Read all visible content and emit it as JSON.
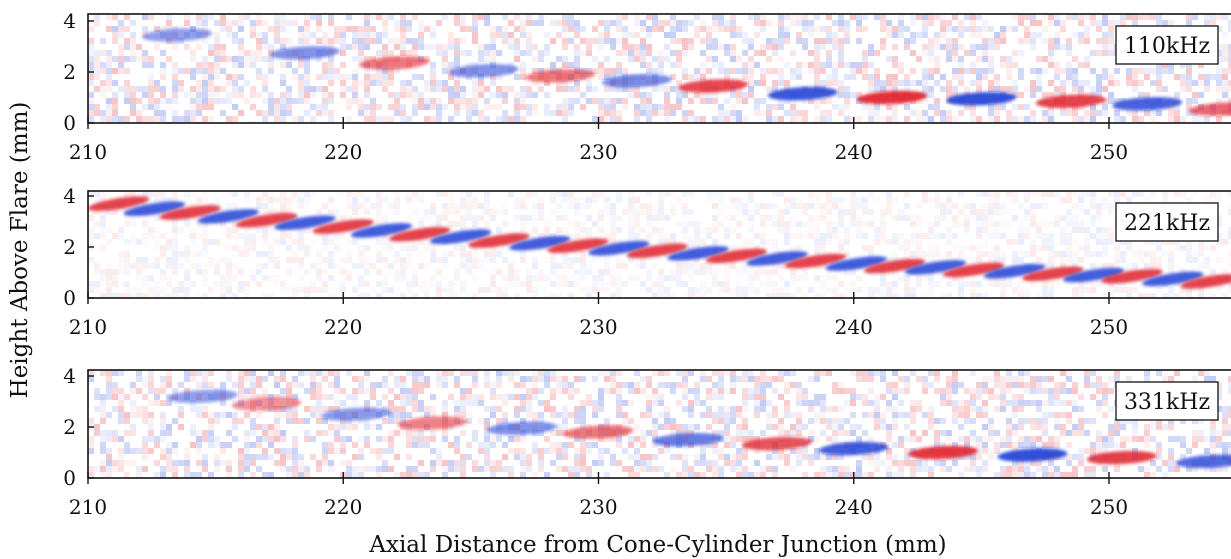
{
  "chart_data": {
    "type": "heatmap",
    "xlabel": "Axial Distance from Cone-Cylinder Junction (mm)",
    "ylabel": "Height Above Flare (mm)",
    "xlim": [
      210,
      255
    ],
    "ylim": [
      0,
      4.3
    ],
    "xticks": [
      210,
      220,
      230,
      240,
      250
    ],
    "yticks": [
      0,
      2,
      4
    ],
    "colormap": {
      "negative": "#1f3fd6",
      "zero": "#ffffff",
      "positive": "#e0202a"
    },
    "grid": false,
    "panels": [
      {
        "label": "110kHz",
        "wave_packets": [
          {
            "x": 213.5,
            "y": 3.45,
            "sign": -1,
            "amp": 0.35
          },
          {
            "x": 218.5,
            "y": 2.75,
            "sign": -1,
            "amp": 0.45
          },
          {
            "x": 222.0,
            "y": 2.35,
            "sign": 1,
            "amp": 0.5
          },
          {
            "x": 225.5,
            "y": 2.05,
            "sign": -1,
            "amp": 0.45
          },
          {
            "x": 228.5,
            "y": 1.85,
            "sign": 1,
            "amp": 0.5
          },
          {
            "x": 231.5,
            "y": 1.65,
            "sign": -1,
            "amp": 0.5
          },
          {
            "x": 234.5,
            "y": 1.45,
            "sign": 1,
            "amp": 0.8
          },
          {
            "x": 238.0,
            "y": 1.15,
            "sign": -1,
            "amp": 0.9
          },
          {
            "x": 241.5,
            "y": 1.0,
            "sign": 1,
            "amp": 0.95
          },
          {
            "x": 245.0,
            "y": 0.95,
            "sign": -1,
            "amp": 0.95
          },
          {
            "x": 248.5,
            "y": 0.85,
            "sign": 1,
            "amp": 0.85
          },
          {
            "x": 251.5,
            "y": 0.75,
            "sign": -1,
            "amp": 0.8
          },
          {
            "x": 254.5,
            "y": 0.55,
            "sign": 1,
            "amp": 0.6
          }
        ]
      },
      {
        "label": "221kHz",
        "wave_packets": [
          {
            "x": 211.2,
            "y": 3.7,
            "sign": 1,
            "amp": 0.85
          },
          {
            "x": 212.6,
            "y": 3.5,
            "sign": -1,
            "amp": 0.85
          },
          {
            "x": 214.0,
            "y": 3.35,
            "sign": 1,
            "amp": 0.85
          },
          {
            "x": 215.5,
            "y": 3.2,
            "sign": -1,
            "amp": 0.85
          },
          {
            "x": 217.0,
            "y": 3.05,
            "sign": 1,
            "amp": 0.85
          },
          {
            "x": 218.5,
            "y": 2.95,
            "sign": -1,
            "amp": 0.85
          },
          {
            "x": 220.0,
            "y": 2.8,
            "sign": 1,
            "amp": 0.85
          },
          {
            "x": 221.5,
            "y": 2.65,
            "sign": -1,
            "amp": 0.85
          },
          {
            "x": 223.0,
            "y": 2.5,
            "sign": 1,
            "amp": 0.85
          },
          {
            "x": 224.6,
            "y": 2.4,
            "sign": -1,
            "amp": 0.85
          },
          {
            "x": 226.1,
            "y": 2.25,
            "sign": 1,
            "amp": 0.85
          },
          {
            "x": 227.7,
            "y": 2.15,
            "sign": -1,
            "amp": 0.85
          },
          {
            "x": 229.2,
            "y": 2.05,
            "sign": 1,
            "amp": 0.85
          },
          {
            "x": 230.8,
            "y": 1.95,
            "sign": -1,
            "amp": 0.85
          },
          {
            "x": 232.3,
            "y": 1.85,
            "sign": 1,
            "amp": 0.85
          },
          {
            "x": 233.9,
            "y": 1.75,
            "sign": -1,
            "amp": 0.85
          },
          {
            "x": 235.4,
            "y": 1.65,
            "sign": 1,
            "amp": 0.85
          },
          {
            "x": 237.0,
            "y": 1.55,
            "sign": -1,
            "amp": 0.85
          },
          {
            "x": 238.5,
            "y": 1.45,
            "sign": 1,
            "amp": 0.85
          },
          {
            "x": 240.1,
            "y": 1.35,
            "sign": -1,
            "amp": 0.85
          },
          {
            "x": 241.6,
            "y": 1.25,
            "sign": 1,
            "amp": 0.85
          },
          {
            "x": 243.2,
            "y": 1.2,
            "sign": -1,
            "amp": 0.85
          },
          {
            "x": 244.7,
            "y": 1.1,
            "sign": 1,
            "amp": 0.85
          },
          {
            "x": 246.3,
            "y": 1.05,
            "sign": -1,
            "amp": 0.85
          },
          {
            "x": 247.8,
            "y": 0.95,
            "sign": 1,
            "amp": 0.85
          },
          {
            "x": 249.4,
            "y": 0.9,
            "sign": -1,
            "amp": 0.85
          },
          {
            "x": 250.9,
            "y": 0.85,
            "sign": 1,
            "amp": 0.85
          },
          {
            "x": 252.5,
            "y": 0.75,
            "sign": -1,
            "amp": 0.85
          },
          {
            "x": 254.0,
            "y": 0.65,
            "sign": 1,
            "amp": 0.85
          }
        ]
      },
      {
        "label": "331kHz",
        "wave_packets": [
          {
            "x": 214.5,
            "y": 3.2,
            "sign": -1,
            "amp": 0.35
          },
          {
            "x": 217.0,
            "y": 2.9,
            "sign": 1,
            "amp": 0.35
          },
          {
            "x": 220.5,
            "y": 2.5,
            "sign": -1,
            "amp": 0.4
          },
          {
            "x": 223.5,
            "y": 2.15,
            "sign": 1,
            "amp": 0.45
          },
          {
            "x": 227.0,
            "y": 1.95,
            "sign": -1,
            "amp": 0.45
          },
          {
            "x": 230.0,
            "y": 1.8,
            "sign": 1,
            "amp": 0.5
          },
          {
            "x": 233.5,
            "y": 1.5,
            "sign": -1,
            "amp": 0.6
          },
          {
            "x": 237.0,
            "y": 1.35,
            "sign": 1,
            "amp": 0.75
          },
          {
            "x": 240.0,
            "y": 1.15,
            "sign": -1,
            "amp": 0.85
          },
          {
            "x": 243.5,
            "y": 1.0,
            "sign": 1,
            "amp": 0.9
          },
          {
            "x": 247.0,
            "y": 0.9,
            "sign": -1,
            "amp": 0.95
          },
          {
            "x": 250.5,
            "y": 0.8,
            "sign": 1,
            "amp": 0.85
          },
          {
            "x": 254.0,
            "y": 0.65,
            "sign": -1,
            "amp": 0.75
          }
        ]
      }
    ]
  }
}
